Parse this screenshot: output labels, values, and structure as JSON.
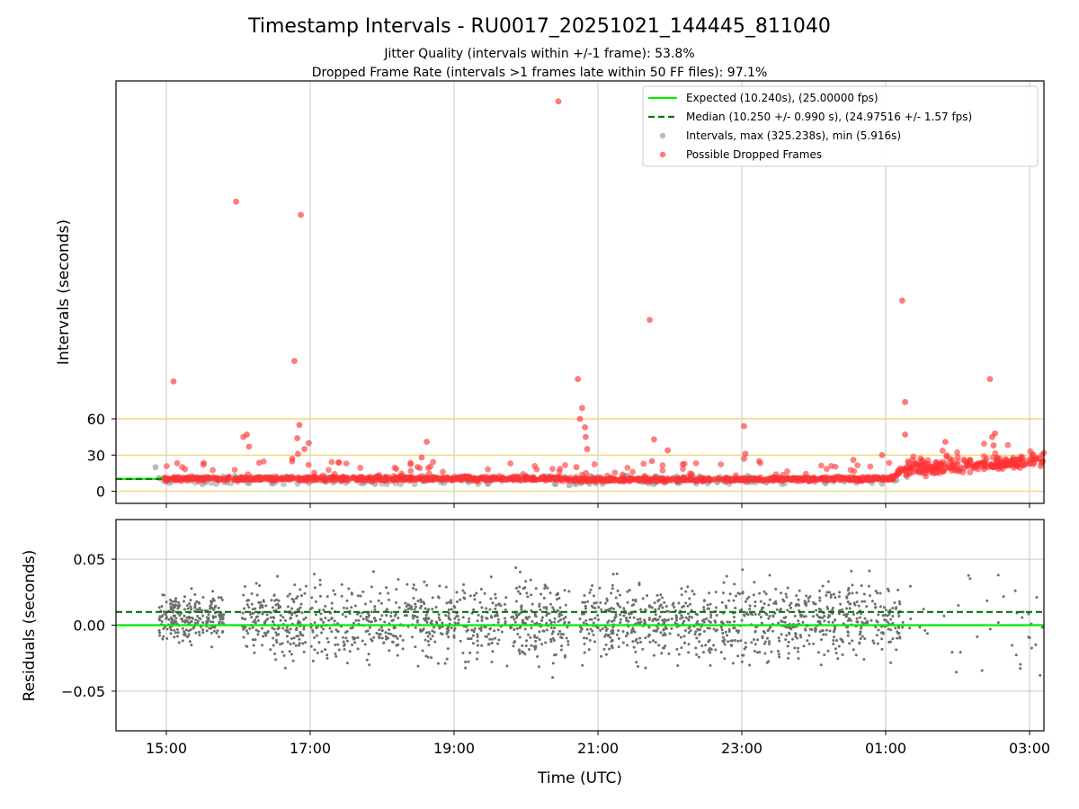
{
  "chart_data": [
    {
      "type": "scatter",
      "panel": "intervals",
      "title": "Timestamp Intervals - RU0017_20251021_144445_811040",
      "subtitles": [
        "Jitter Quality (intervals within +/-1 frame): 53.8%",
        "Dropped Frame Rate (intervals >1 frames late within 50 FF files): 97.1%"
      ],
      "ylabel": "Intervals (seconds)",
      "yticks": [
        "0",
        "30",
        "60"
      ],
      "ytick_values": [
        0,
        30,
        60
      ],
      "reference_lines": [
        0,
        30,
        60
      ],
      "reference_line_color": "#f3d77a",
      "x_range_hours": [
        14.3,
        27.2
      ],
      "ylim": [
        -10,
        340
      ],
      "grid": "vertical",
      "legend_position": "top-right",
      "legend": [
        {
          "label": "Expected (10.240s), (25.00000 fps)",
          "kind": "solid-line",
          "color": "#00ee00"
        },
        {
          "label": "Median (10.250 +/- 0.990 s), (24.97516 +/- 1.57 fps)",
          "kind": "dashed-line",
          "color": "#007700"
        },
        {
          "label": "Intervals, max (325.238s), min (5.916s)",
          "kind": "marker",
          "color": "#8c8c8c"
        },
        {
          "label": "Possible Dropped Frames",
          "kind": "marker",
          "color": "#ff3333"
        }
      ],
      "series": [
        {
          "name": "Expected (10.240s), (25.00000 fps)",
          "type": "hline",
          "value": 10.24,
          "x_range_hours": [
            14.3,
            14.95
          ],
          "color": "#00ee00"
        },
        {
          "name": "Median (10.250 +/- 0.990 s), (24.97516 +/- 1.57 fps)",
          "type": "hline",
          "value": 10.25,
          "x_range_hours": [
            14.3,
            14.95
          ],
          "color": "#007700",
          "dashed": true
        },
        {
          "name": "Possible Dropped Frames (outliers)",
          "color": "#ff3333",
          "points": [
            [
              15.1,
              91
            ],
            [
              15.97,
              240
            ],
            [
              16.07,
              45
            ],
            [
              16.12,
              47
            ],
            [
              16.15,
              37
            ],
            [
              16.78,
              108
            ],
            [
              16.82,
              44
            ],
            [
              16.85,
              55
            ],
            [
              16.87,
              229
            ],
            [
              16.83,
              31
            ],
            [
              16.92,
              35
            ],
            [
              16.98,
              40
            ],
            [
              16.75,
              27
            ],
            [
              18.62,
              41
            ],
            [
              18.55,
              28
            ],
            [
              20.45,
              323
            ],
            [
              20.72,
              93
            ],
            [
              20.75,
              60
            ],
            [
              20.78,
              69
            ],
            [
              20.82,
              53
            ],
            [
              20.83,
              45
            ],
            [
              20.85,
              35
            ],
            [
              20.7,
              20
            ],
            [
              21.72,
              142
            ],
            [
              21.78,
              43
            ],
            [
              21.97,
              34
            ],
            [
              21.75,
              25
            ],
            [
              23.03,
              54
            ],
            [
              23.05,
              31
            ],
            [
              23.03,
              27
            ],
            [
              24.55,
              26
            ],
            [
              24.95,
              30
            ],
            [
              25.23,
              158
            ],
            [
              25.27,
              74
            ],
            [
              25.27,
              47
            ],
            [
              25.83,
              41
            ],
            [
              26.45,
              93
            ],
            [
              26.48,
              45
            ],
            [
              26.52,
              48
            ],
            [
              26.5,
              38
            ],
            [
              26.55,
              28
            ],
            [
              26.1,
              25
            ],
            [
              25.5,
              25
            ]
          ]
        },
        {
          "name": "Possible Dropped Frames (band)",
          "color": "#ff3333",
          "band": [
            [
              14.95,
              10.5
            ],
            [
              20.6,
              10.5
            ],
            [
              20.65,
              9.5
            ],
            [
              25.1,
              10.5
            ],
            [
              25.25,
              19
            ],
            [
              26.5,
              22
            ],
            [
              26.85,
              24
            ],
            [
              27.2,
              28
            ]
          ]
        },
        {
          "name": "Intervals, max (325.238s), min (5.916s)",
          "color": "#8c8c8c",
          "points": [
            [
              14.85,
              20
            ],
            [
              14.9,
              11
            ],
            [
              15.5,
              6
            ],
            [
              17.9,
              6
            ],
            [
              20.6,
              5
            ],
            [
              20.7,
              6
            ],
            [
              25.3,
              12
            ]
          ]
        }
      ]
    },
    {
      "type": "scatter",
      "panel": "residuals",
      "xlabel": "Time (UTC)",
      "ylabel": "Residuals (seconds)",
      "xticks": [
        "15:00",
        "17:00",
        "19:00",
        "21:00",
        "23:00",
        "01:00",
        "03:00"
      ],
      "xtick_hours": [
        15,
        17,
        19,
        21,
        23,
        25,
        27
      ],
      "yticks": [
        "0.05",
        "0.00",
        "−0.05"
      ],
      "ytick_values": [
        0.05,
        0.0,
        -0.05
      ],
      "ylim": [
        -0.08,
        0.08
      ],
      "grid": "both",
      "series": [
        {
          "name": "Expected",
          "type": "hline",
          "value": 0.0,
          "color": "#00ee00"
        },
        {
          "name": "Median",
          "type": "hline",
          "value": 0.01,
          "color": "#007700",
          "dashed": true
        },
        {
          "name": "Residuals",
          "color": "#6e6e6e",
          "clusters": [
            {
              "x": [
                14.9,
                15.8
              ],
              "n": 240,
              "center": 0.006,
              "spread": 0.018
            },
            {
              "x": [
                16.05,
                16.95
              ],
              "n": 200,
              "center": 0.004,
              "spread": 0.026
            },
            {
              "x": [
                17.0,
                20.6
              ],
              "n": 640,
              "center": 0.003,
              "spread": 0.028
            },
            {
              "x": [
                20.75,
                23.85
              ],
              "n": 600,
              "center": 0.003,
              "spread": 0.028
            },
            {
              "x": [
                23.85,
                25.2
              ],
              "n": 260,
              "center": 0.004,
              "spread": 0.026
            },
            {
              "x": [
                25.2,
                27.2
              ],
              "n": 40,
              "center": 0.0,
              "spread": 0.045
            }
          ]
        }
      ]
    }
  ]
}
